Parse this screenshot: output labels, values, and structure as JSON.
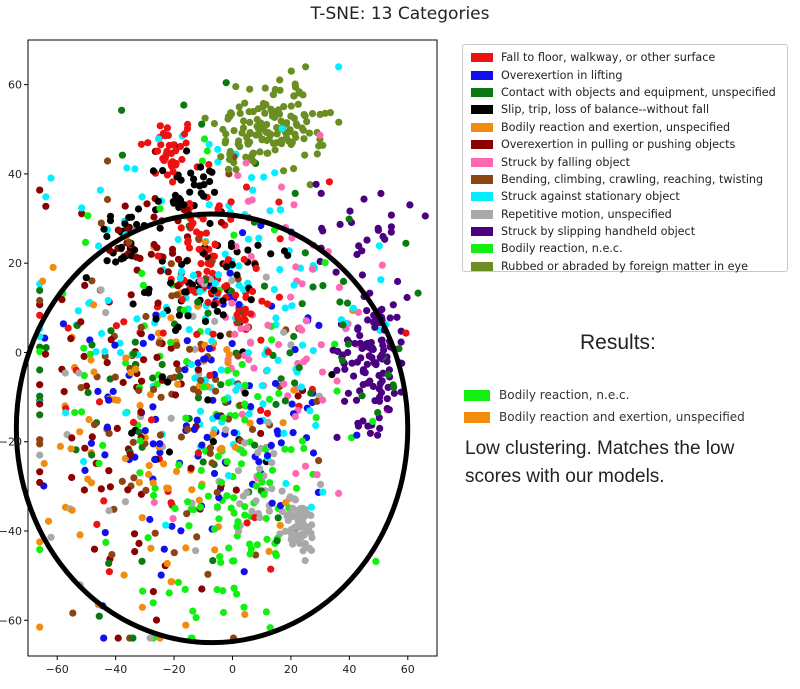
{
  "chart_data": {
    "type": "scatter",
    "title": "T-SNE: 13 Categories",
    "xlabel": "",
    "ylabel": "",
    "xlim": [
      -70,
      70
    ],
    "ylim": [
      -68,
      70
    ],
    "xticks": [
      -60,
      -40,
      -20,
      0,
      20,
      40,
      60
    ],
    "yticks": [
      -60,
      -40,
      -20,
      0,
      20,
      40,
      60
    ],
    "grid": false,
    "legend_position": "right",
    "series": [
      {
        "name": "Fall to floor, walkway, or other surface",
        "color": "#ee1111",
        "clusters": [
          {
            "cx": -22,
            "cy": 45,
            "sx": 5,
            "sy": 4,
            "n": 35
          },
          {
            "cx": -8,
            "cy": 28,
            "sx": 5,
            "sy": 4,
            "n": 25
          },
          {
            "cx": -10,
            "cy": 18,
            "sx": 6,
            "sy": 4,
            "n": 25
          },
          {
            "cx": 3,
            "cy": 10,
            "sx": 5,
            "sy": 4,
            "n": 20
          },
          {
            "cx": -10,
            "cy": 0,
            "sx": 30,
            "sy": 28,
            "n": 50
          }
        ]
      },
      {
        "name": "Overexertion in lifting",
        "color": "#1010ee",
        "clusters": [
          {
            "cx": -10,
            "cy": -15,
            "sx": 22,
            "sy": 18,
            "n": 110
          }
        ]
      },
      {
        "name": "Contact with objects and equipment, unspecified",
        "color": "#0a7a10",
        "clusters": [
          {
            "cx": -10,
            "cy": 0,
            "sx": 32,
            "sy": 30,
            "n": 70
          },
          {
            "cx": 40,
            "cy": 5,
            "sx": 10,
            "sy": 10,
            "n": 20
          }
        ]
      },
      {
        "name": "Slip, trip, loss of balance--without fall",
        "color": "#000000",
        "clusters": [
          {
            "cx": -15,
            "cy": 35,
            "sx": 6,
            "sy": 4,
            "n": 35
          },
          {
            "cx": -38,
            "cy": 25,
            "sx": 5,
            "sy": 4,
            "n": 25
          },
          {
            "cx": -12,
            "cy": 15,
            "sx": 8,
            "sy": 4,
            "n": 30
          },
          {
            "cx": 5,
            "cy": 18,
            "sx": 8,
            "sy": 4,
            "n": 15
          },
          {
            "cx": -10,
            "cy": 0,
            "sx": 25,
            "sy": 22,
            "n": 25
          }
        ]
      },
      {
        "name": "Bodily reaction and exertion, unspecified",
        "color": "#f28c0f",
        "clusters": [
          {
            "cx": -25,
            "cy": -20,
            "sx": 22,
            "sy": 22,
            "n": 90
          }
        ]
      },
      {
        "name": "Overexertion in pulling or pushing objects",
        "color": "#8b0000",
        "clusters": [
          {
            "cx": -30,
            "cy": -5,
            "sx": 18,
            "sy": 25,
            "n": 90
          },
          {
            "cx": -35,
            "cy": 20,
            "sx": 8,
            "sy": 6,
            "n": 25
          }
        ]
      },
      {
        "name": "Struck by falling object",
        "color": "#ff69b4",
        "clusters": [
          {
            "cx": 15,
            "cy": 5,
            "sx": 20,
            "sy": 20,
            "n": 70
          }
        ]
      },
      {
        "name": "Bending, climbing, crawling, reaching, twisting",
        "color": "#8b4513",
        "clusters": [
          {
            "cx": -20,
            "cy": -10,
            "sx": 22,
            "sy": 22,
            "n": 90
          }
        ]
      },
      {
        "name": "Struck against stationary object",
        "color": "#00f0ff",
        "clusters": [
          {
            "cx": -5,
            "cy": 10,
            "sx": 25,
            "sy": 22,
            "n": 150
          }
        ]
      },
      {
        "name": "Repetitive motion, unspecified",
        "color": "#a9a9a9",
        "clusters": [
          {
            "cx": 23,
            "cy": -39,
            "sx": 3,
            "sy": 3,
            "n": 60
          },
          {
            "cx": 10,
            "cy": -28,
            "sx": 6,
            "sy": 5,
            "n": 25
          },
          {
            "cx": -10,
            "cy": -20,
            "sx": 30,
            "sy": 22,
            "n": 40
          }
        ]
      },
      {
        "name": "Struck by slipping handheld object",
        "color": "#4b0082",
        "clusters": [
          {
            "cx": 48,
            "cy": 0,
            "sx": 6,
            "sy": 8,
            "n": 110
          },
          {
            "cx": 45,
            "cy": 28,
            "sx": 8,
            "sy": 6,
            "n": 25
          }
        ]
      },
      {
        "name": "Bodily reaction, n.e.c.",
        "color": "#11f011",
        "clusters": [
          {
            "cx": 5,
            "cy": -35,
            "sx": 10,
            "sy": 10,
            "n": 60
          },
          {
            "cx": -15,
            "cy": -15,
            "sx": 28,
            "sy": 25,
            "n": 100
          }
        ]
      },
      {
        "name": "Rubbed or abraded by foreign matter in eye",
        "color": "#6b8e23",
        "clusters": [
          {
            "cx": 10,
            "cy": 52,
            "sx": 8,
            "sy": 5,
            "n": 70
          },
          {
            "cx": 22,
            "cy": 52,
            "sx": 5,
            "sy": 5,
            "n": 50
          },
          {
            "cx": 5,
            "cy": 45,
            "sx": 6,
            "sy": 3,
            "n": 25
          }
        ]
      }
    ],
    "annotation": {
      "shape": "ellipse",
      "cx": -7,
      "cy": -17,
      "rx": 67,
      "ry": 48
    }
  },
  "results": {
    "heading": "Results:",
    "legend": [
      {
        "label": "Bodily reaction, n.e.c.",
        "color": "#11f011"
      },
      {
        "label": "Bodily reaction and exertion, unspecified",
        "color": "#f28c0f"
      }
    ],
    "text": "Low clustering. Matches the low scores with our models."
  }
}
